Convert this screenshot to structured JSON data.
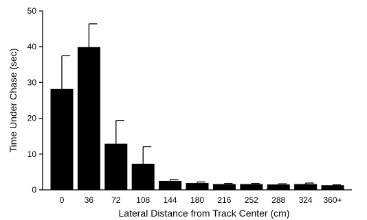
{
  "chart_data": {
    "type": "bar",
    "title": "",
    "xlabel": "Lateral Distance from Track Center (cm)",
    "ylabel": "Time Under Chase (sec)",
    "ylim": [
      0,
      50
    ],
    "yticks": [
      0,
      10,
      20,
      30,
      40,
      50
    ],
    "categories": [
      "0",
      "36",
      "72",
      "108",
      "144",
      "180",
      "216",
      "252",
      "288",
      "324",
      "360+"
    ],
    "values": [
      28.2,
      39.9,
      12.9,
      7.3,
      2.5,
      1.9,
      1.6,
      1.6,
      1.5,
      1.6,
      1.3
    ],
    "error_upper": [
      9.3,
      6.5,
      6.5,
      4.8,
      0.4,
      0.3,
      0.2,
      0.2,
      0.2,
      0.3,
      0.1
    ],
    "bar_color": "#000000",
    "grid": false,
    "legend": "none"
  }
}
